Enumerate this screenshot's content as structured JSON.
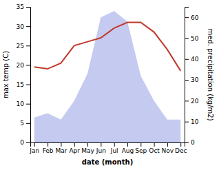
{
  "chart_data": {
    "type": "line",
    "xlabel": "date (month)",
    "ylabel": "max temp (C)",
    "y2label": "med. precipitation (kg/m2)",
    "categories": [
      "Jan",
      "Feb",
      "Mar",
      "Apr",
      "May",
      "Jun",
      "Jul",
      "Aug",
      "Sep",
      "Oct",
      "Nov",
      "Dec"
    ],
    "series": [
      {
        "type": "area",
        "axis": "y2",
        "color": "#c5caf0",
        "values": [
          12,
          14,
          11,
          20,
          33,
          60,
          63,
          58,
          32,
          20,
          11,
          11
        ]
      },
      {
        "type": "line",
        "axis": "y",
        "color": "#c0392b",
        "values": [
          19.5,
          19.0,
          20.5,
          25.0,
          26.0,
          27.0,
          29.5,
          31.0,
          31.0,
          28.5,
          24.0,
          18.5
        ]
      }
    ],
    "ylim": [
      0,
      35
    ],
    "yticks": [
      0,
      5,
      10,
      15,
      20,
      25,
      30,
      35
    ],
    "y2lim": [
      0,
      65
    ],
    "y2ticks": [
      0,
      10,
      20,
      30,
      40,
      50,
      60
    ],
    "grid": false
  }
}
